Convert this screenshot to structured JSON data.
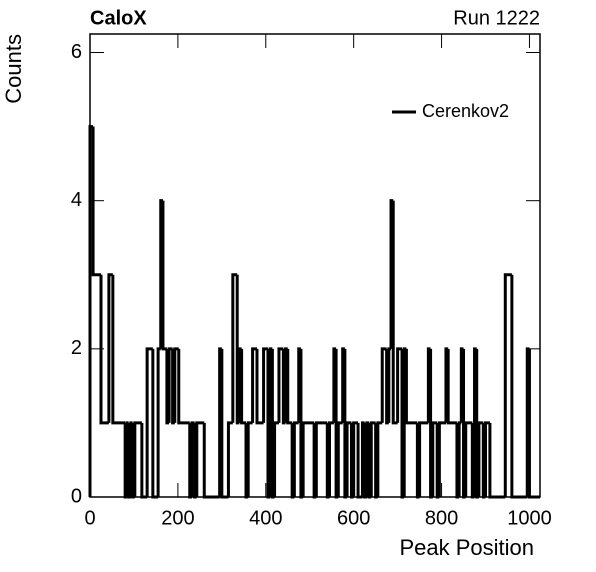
{
  "chart_data": {
    "type": "histogram",
    "title": "CaloX",
    "subtitle": "Run 1222",
    "x_label": "Peak Position",
    "y_label": "Counts",
    "series": [
      {
        "name": "Cerenkov2",
        "color": "#000000",
        "bins": [
          0,
          7,
          25,
          43,
          52,
          80,
          84,
          88,
          93,
          97,
          102,
          118,
          130,
          143,
          155,
          161,
          166,
          175,
          180,
          188,
          193,
          202,
          227,
          232,
          238,
          243,
          260,
          295,
          300,
          315,
          325,
          335,
          340,
          345,
          355,
          360,
          370,
          380,
          395,
          405,
          410,
          415,
          420,
          430,
          440,
          445,
          450,
          460,
          465,
          475,
          480,
          485,
          510,
          515,
          540,
          545,
          555,
          560,
          565,
          575,
          580,
          585,
          595,
          600,
          610,
          620,
          625,
          630,
          635,
          640,
          650,
          655,
          665,
          675,
          680,
          685,
          690,
          700,
          710,
          715,
          720,
          745,
          750,
          770,
          775,
          780,
          790,
          795,
          810,
          815,
          835,
          840,
          845,
          850,
          855,
          870,
          875,
          880,
          885,
          895,
          900,
          910,
          945,
          960,
          995,
          1000,
          1024
        ],
        "values": [
          5,
          3,
          1,
          3,
          1,
          0,
          1,
          0,
          1,
          0,
          1,
          0,
          2,
          0,
          2,
          4,
          2,
          1,
          2,
          1,
          2,
          1,
          0,
          1,
          0,
          1,
          0,
          2,
          0,
          1,
          3,
          1,
          2,
          1,
          0,
          1,
          2,
          1,
          2,
          0,
          2,
          0,
          1,
          2,
          1,
          2,
          1,
          0,
          1,
          2,
          0,
          1,
          0,
          1,
          0,
          1,
          2,
          0,
          1,
          2,
          0,
          1,
          0,
          1,
          0,
          1,
          0,
          1,
          0,
          1,
          0,
          1,
          2,
          1,
          2,
          4,
          1,
          2,
          0,
          2,
          1,
          0,
          1,
          2,
          0,
          1,
          0,
          1,
          2,
          1,
          0,
          1,
          2,
          0,
          1,
          0,
          2,
          0,
          1,
          0,
          1,
          0,
          3,
          0,
          2,
          0
        ]
      }
    ],
    "xlim": [
      0,
      1024
    ],
    "ylim": [
      0,
      6.25
    ],
    "xticks": [
      0,
      200,
      400,
      600,
      800,
      1000
    ],
    "yticks": [
      0,
      2,
      4,
      6
    ],
    "legend": "top-right"
  }
}
